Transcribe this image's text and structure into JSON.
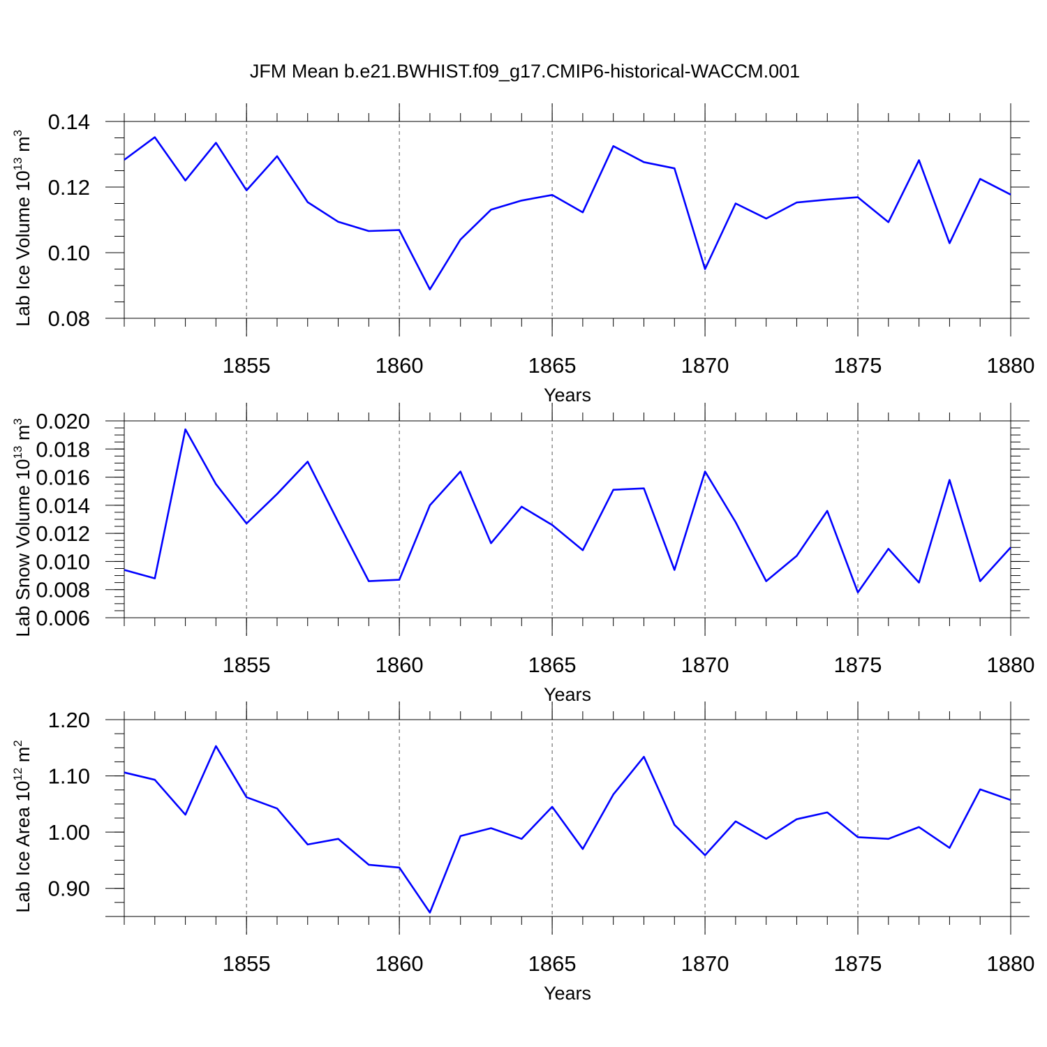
{
  "title": "JFM Mean b.e21.BWHIST.f09_g17.CMIP6-historical-WACCM.001",
  "chart_data": [
    {
      "type": "line",
      "id": "ice-volume",
      "title": "JFM Mean b.e21.BWHIST.f09_g17.CMIP6-historical-WACCM.001",
      "ylabel_main": "Lab Ice Volume 10",
      "ylabel_exp": "13",
      "ylabel_unit": " m",
      "ylabel_unit_exp": "3",
      "xlabel": "Years",
      "xlim": [
        1851,
        1880
      ],
      "ylim": [
        0.08,
        0.14
      ],
      "yticks": [
        0.08,
        0.1,
        0.12,
        0.14
      ],
      "ytick_labels": [
        "0.08",
        "0.10",
        "0.12",
        "0.14"
      ],
      "yminor_step": 0.005,
      "xticks": [
        1855,
        1860,
        1865,
        1870,
        1875,
        1880
      ],
      "xtick_labels": [
        "1855",
        "1860",
        "1865",
        "1870",
        "1875",
        "1880"
      ],
      "line_color": "#0000ff",
      "x": [
        1851,
        1852,
        1853,
        1854,
        1855,
        1856,
        1857,
        1858,
        1859,
        1860,
        1861,
        1862,
        1863,
        1864,
        1865,
        1866,
        1867,
        1868,
        1869,
        1870,
        1871,
        1872,
        1873,
        1874,
        1875,
        1876,
        1877,
        1878,
        1879,
        1880
      ],
      "values": [
        0.1283,
        0.1352,
        0.122,
        0.1335,
        0.119,
        0.1294,
        0.1154,
        0.1094,
        0.1066,
        0.1069,
        0.0888,
        0.104,
        0.1131,
        0.1159,
        0.1176,
        0.1123,
        0.1325,
        0.1276,
        0.1257,
        0.095,
        0.115,
        0.1104,
        0.1153,
        0.1162,
        0.1169,
        0.1093,
        0.1282,
        0.1029,
        0.1225,
        0.1177
      ]
    },
    {
      "type": "line",
      "id": "snow-volume",
      "ylabel_main": "Lab Snow Volume 10",
      "ylabel_exp": "13",
      "ylabel_unit": " m",
      "ylabel_unit_exp": "3",
      "xlabel": "Years",
      "xlim": [
        1851,
        1880
      ],
      "ylim": [
        0.006,
        0.02
      ],
      "yticks": [
        0.006,
        0.008,
        0.01,
        0.012,
        0.014,
        0.016,
        0.018,
        0.02
      ],
      "ytick_labels": [
        "0.006",
        "0.008",
        "0.010",
        "0.012",
        "0.014",
        "0.016",
        "0.018",
        "0.020"
      ],
      "yminor_step": 0.0005,
      "xticks": [
        1855,
        1860,
        1865,
        1870,
        1875,
        1880
      ],
      "xtick_labels": [
        "1855",
        "1860",
        "1865",
        "1870",
        "1875",
        "1880"
      ],
      "line_color": "#0000ff",
      "x": [
        1851,
        1852,
        1853,
        1854,
        1855,
        1856,
        1857,
        1858,
        1859,
        1860,
        1861,
        1862,
        1863,
        1864,
        1865,
        1866,
        1867,
        1868,
        1869,
        1870,
        1871,
        1872,
        1873,
        1874,
        1875,
        1876,
        1877,
        1878,
        1879,
        1880
      ],
      "values": [
        0.0094,
        0.0088,
        0.0194,
        0.0155,
        0.0127,
        0.0148,
        0.0171,
        0.0128,
        0.0086,
        0.0087,
        0.014,
        0.0164,
        0.0113,
        0.0139,
        0.0126,
        0.0108,
        0.0151,
        0.0152,
        0.0094,
        0.0164,
        0.0128,
        0.0086,
        0.0104,
        0.0136,
        0.0078,
        0.0109,
        0.0085,
        0.0158,
        0.0086,
        0.011
      ]
    },
    {
      "type": "line",
      "id": "ice-area",
      "ylabel_main": "Lab Ice Area 10",
      "ylabel_exp": "12",
      "ylabel_unit": " m",
      "ylabel_unit_exp": "2",
      "xlabel": "Years",
      "xlim": [
        1851,
        1880
      ],
      "ylim": [
        0.85,
        1.2
      ],
      "yticks": [
        0.9,
        1.0,
        1.1,
        1.2
      ],
      "ytick_labels": [
        "0.90",
        "1.00",
        "1.10",
        "1.20"
      ],
      "yminor_step": 0.025,
      "xticks": [
        1855,
        1860,
        1865,
        1870,
        1875,
        1880
      ],
      "xtick_labels": [
        "1855",
        "1860",
        "1865",
        "1870",
        "1875",
        "1880"
      ],
      "line_color": "#0000ff",
      "x": [
        1851,
        1852,
        1853,
        1854,
        1855,
        1856,
        1857,
        1858,
        1859,
        1860,
        1861,
        1862,
        1863,
        1864,
        1865,
        1866,
        1867,
        1868,
        1869,
        1870,
        1871,
        1872,
        1873,
        1874,
        1875,
        1876,
        1877,
        1878,
        1879,
        1880
      ],
      "values": [
        1.106,
        1.093,
        1.031,
        1.153,
        1.062,
        1.042,
        0.978,
        0.988,
        0.942,
        0.937,
        0.857,
        0.993,
        1.007,
        0.988,
        1.045,
        0.97,
        1.067,
        1.134,
        1.013,
        0.959,
        1.019,
        0.988,
        1.023,
        1.035,
        0.991,
        0.988,
        1.009,
        0.972,
        1.076,
        1.057
      ]
    }
  ]
}
